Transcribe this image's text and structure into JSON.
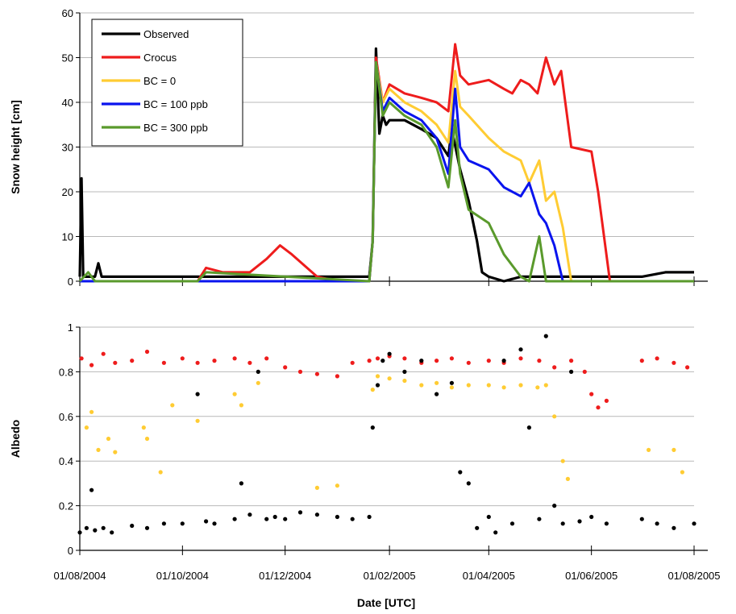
{
  "chart_data": [
    {
      "type": "line",
      "title": "",
      "xlabel": "",
      "ylabel": "Snow height [cm]",
      "ylim": [
        0,
        60
      ],
      "yticks": [
        0,
        10,
        20,
        30,
        40,
        50,
        60
      ],
      "xlim": [
        "2004-08-01",
        "2005-08-01"
      ],
      "xticks": [
        "01/08/2004",
        "01/10/2004",
        "01/12/2004",
        "01/02/2005",
        "01/04/2005",
        "01/06/2005",
        "01/08/2005"
      ],
      "grid": "horizontal",
      "legend": "top-left",
      "series": [
        {
          "name": "Observed",
          "color": "#000000",
          "x": [
            "2004-08-01",
            "2004-08-02",
            "2004-08-03",
            "2004-08-04",
            "2004-08-10",
            "2004-08-12",
            "2004-08-14",
            "2004-08-20",
            "2004-09-01",
            "2004-10-01",
            "2004-11-01",
            "2004-12-01",
            "2005-01-01",
            "2005-01-20",
            "2005-01-22",
            "2005-01-24",
            "2005-01-26",
            "2005-01-28",
            "2005-01-30",
            "2005-02-01",
            "2005-02-10",
            "2005-02-20",
            "2005-03-01",
            "2005-03-08",
            "2005-03-10",
            "2005-03-15",
            "2005-03-20",
            "2005-03-25",
            "2005-03-28",
            "2005-04-01",
            "2005-04-10",
            "2005-04-20",
            "2005-05-01",
            "2005-06-01",
            "2005-07-01",
            "2005-07-15",
            "2005-08-01"
          ],
          "y": [
            1,
            23,
            1,
            1,
            1,
            4,
            1,
            1,
            1,
            1,
            1,
            1,
            1,
            1,
            9,
            52,
            33,
            37,
            35,
            36,
            36,
            34,
            32,
            28,
            34,
            25,
            18,
            9,
            2,
            1,
            0,
            1,
            1,
            1,
            1,
            2,
            2
          ]
        },
        {
          "name": "Crocus",
          "color": "#ee1c1c",
          "x": [
            "2004-08-01",
            "2004-10-10",
            "2004-10-15",
            "2004-10-25",
            "2004-11-10",
            "2004-11-20",
            "2004-11-28",
            "2004-12-05",
            "2004-12-20",
            "2005-01-01",
            "2005-01-20",
            "2005-01-22",
            "2005-01-24",
            "2005-01-28",
            "2005-02-01",
            "2005-02-10",
            "2005-02-20",
            "2005-03-01",
            "2005-03-08",
            "2005-03-12",
            "2005-03-15",
            "2005-03-20",
            "2005-04-01",
            "2005-04-10",
            "2005-04-15",
            "2005-04-20",
            "2005-04-25",
            "2005-04-30",
            "2005-05-05",
            "2005-05-10",
            "2005-05-14",
            "2005-05-20",
            "2005-06-01",
            "2005-06-05",
            "2005-06-12",
            "2005-08-01"
          ],
          "y": [
            0,
            0,
            3,
            2,
            2,
            5,
            8,
            6,
            1,
            0,
            0,
            9,
            50,
            40,
            44,
            42,
            41,
            40,
            38,
            53,
            46,
            44,
            45,
            43,
            42,
            45,
            44,
            42,
            50,
            44,
            47,
            30,
            29,
            20,
            0,
            0
          ]
        },
        {
          "name": "BC = 0",
          "color": "#ffcc33",
          "x": [
            "2004-08-01",
            "2005-01-20",
            "2005-01-22",
            "2005-01-24",
            "2005-01-28",
            "2005-02-01",
            "2005-02-10",
            "2005-02-20",
            "2005-03-01",
            "2005-03-08",
            "2005-03-12",
            "2005-03-15",
            "2005-03-20",
            "2005-04-01",
            "2005-04-10",
            "2005-04-20",
            "2005-04-25",
            "2005-05-01",
            "2005-05-05",
            "2005-05-10",
            "2005-05-15",
            "2005-05-20",
            "2005-08-01"
          ],
          "y": [
            0,
            0,
            9,
            49,
            40,
            43,
            40,
            38,
            35,
            31,
            47,
            39,
            37,
            32,
            29,
            27,
            22,
            27,
            18,
            20,
            12,
            0,
            0
          ]
        },
        {
          "name": "BC = 100 ppb",
          "color": "#0a14ee",
          "x": [
            "2004-08-01",
            "2005-01-20",
            "2005-01-22",
            "2005-01-24",
            "2005-01-28",
            "2005-02-01",
            "2005-02-10",
            "2005-02-20",
            "2005-03-01",
            "2005-03-08",
            "2005-03-12",
            "2005-03-15",
            "2005-03-20",
            "2005-04-01",
            "2005-04-10",
            "2005-04-20",
            "2005-04-25",
            "2005-05-01",
            "2005-05-05",
            "2005-05-10",
            "2005-05-15",
            "2005-08-01"
          ],
          "y": [
            0,
            0,
            9,
            49,
            38,
            41,
            38,
            36,
            32,
            24,
            43,
            30,
            27,
            25,
            21,
            19,
            22,
            15,
            13,
            8,
            0,
            0
          ]
        },
        {
          "name": "BC = 300 ppb",
          "color": "#5a9a2c",
          "x": [
            "2004-08-01",
            "2004-08-06",
            "2004-08-10",
            "2004-10-10",
            "2004-10-15",
            "2005-01-20",
            "2005-01-22",
            "2005-01-24",
            "2005-01-28",
            "2005-02-01",
            "2005-02-10",
            "2005-02-20",
            "2005-03-01",
            "2005-03-08",
            "2005-03-12",
            "2005-03-15",
            "2005-03-20",
            "2005-04-01",
            "2005-04-10",
            "2005-04-20",
            "2005-04-25",
            "2005-05-01",
            "2005-05-05",
            "2005-08-01"
          ],
          "y": [
            0,
            2,
            0,
            0,
            2,
            0,
            9,
            49,
            37,
            40,
            37,
            35,
            30,
            21,
            36,
            24,
            16,
            13,
            6,
            1,
            0,
            10,
            0,
            0
          ]
        }
      ]
    },
    {
      "type": "scatter",
      "title": "",
      "xlabel": "Date [UTC]",
      "ylabel": "Albedo",
      "ylim": [
        0,
        1
      ],
      "yticks": [
        "0",
        "0.2",
        "0.4",
        "0.6",
        "0.8",
        "1"
      ],
      "xlim": [
        "2004-08-01",
        "2005-08-01"
      ],
      "xticks": [
        "01/08/2004",
        "01/10/2004",
        "01/12/2004",
        "01/02/2005",
        "01/04/2005",
        "01/06/2005",
        "01/08/2005"
      ],
      "grid": "horizontal",
      "series": [
        {
          "color": "#ee1c1c",
          "x": [
            "2004-08-02",
            "2004-08-08",
            "2004-08-15",
            "2004-08-22",
            "2004-09-01",
            "2004-09-10",
            "2004-09-20",
            "2004-10-01",
            "2004-10-10",
            "2004-10-20",
            "2004-11-01",
            "2004-11-10",
            "2004-11-20",
            "2004-12-01",
            "2004-12-10",
            "2004-12-20",
            "2005-01-01",
            "2005-01-10",
            "2005-01-20",
            "2005-01-25",
            "2005-02-01",
            "2005-02-10",
            "2005-02-20",
            "2005-03-01",
            "2005-03-10",
            "2005-03-20",
            "2005-04-01",
            "2005-04-10",
            "2005-04-20",
            "2005-05-01",
            "2005-05-10",
            "2005-05-20",
            "2005-05-28",
            "2005-06-01",
            "2005-06-05",
            "2005-06-10",
            "2005-07-01",
            "2005-07-10",
            "2005-07-20",
            "2005-07-28"
          ],
          "y": [
            0.86,
            0.83,
            0.88,
            0.84,
            0.85,
            0.89,
            0.84,
            0.86,
            0.84,
            0.85,
            0.86,
            0.84,
            0.86,
            0.82,
            0.8,
            0.79,
            0.78,
            0.84,
            0.85,
            0.86,
            0.87,
            0.86,
            0.84,
            0.85,
            0.86,
            0.84,
            0.85,
            0.84,
            0.86,
            0.85,
            0.82,
            0.85,
            0.8,
            0.7,
            0.64,
            0.67,
            0.85,
            0.86,
            0.84,
            0.82
          ]
        },
        {
          "color": "#ffcc33",
          "x": [
            "2004-08-05",
            "2004-08-08",
            "2004-08-12",
            "2004-08-18",
            "2004-08-22",
            "2004-09-08",
            "2004-09-10",
            "2004-09-18",
            "2004-09-25",
            "2004-10-10",
            "2004-11-01",
            "2004-11-05",
            "2004-11-15",
            "2004-12-20",
            "2005-01-01",
            "2005-01-22",
            "2005-01-25",
            "2005-02-01",
            "2005-02-10",
            "2005-02-20",
            "2005-03-01",
            "2005-03-10",
            "2005-03-20",
            "2005-04-01",
            "2005-04-10",
            "2005-04-20",
            "2005-04-30",
            "2005-05-05",
            "2005-05-10",
            "2005-05-15",
            "2005-05-18",
            "2005-07-05",
            "2005-07-20",
            "2005-07-25"
          ],
          "y": [
            0.55,
            0.62,
            0.45,
            0.5,
            0.44,
            0.55,
            0.5,
            0.35,
            0.65,
            0.58,
            0.7,
            0.65,
            0.75,
            0.28,
            0.29,
            0.72,
            0.78,
            0.77,
            0.76,
            0.74,
            0.75,
            0.73,
            0.74,
            0.74,
            0.73,
            0.74,
            0.73,
            0.74,
            0.6,
            0.4,
            0.32,
            0.45,
            0.45,
            0.35
          ]
        },
        {
          "name": "Observed",
          "color": "#000000",
          "x": [
            "2004-08-01",
            "2004-08-05",
            "2004-08-08",
            "2004-08-10",
            "2004-08-15",
            "2004-08-20",
            "2004-09-01",
            "2004-09-10",
            "2004-09-20",
            "2004-10-01",
            "2004-10-10",
            "2004-10-15",
            "2004-10-20",
            "2004-11-01",
            "2004-11-05",
            "2004-11-10",
            "2004-11-15",
            "2004-11-20",
            "2004-11-25",
            "2004-12-01",
            "2004-12-10",
            "2004-12-20",
            "2005-01-01",
            "2005-01-10",
            "2005-01-20",
            "2005-01-22",
            "2005-01-25",
            "2005-01-28",
            "2005-02-01",
            "2005-02-10",
            "2005-02-20",
            "2005-03-01",
            "2005-03-10",
            "2005-03-15",
            "2005-03-20",
            "2005-03-25",
            "2005-04-01",
            "2005-04-05",
            "2005-04-10",
            "2005-04-15",
            "2005-04-20",
            "2005-04-25",
            "2005-05-01",
            "2005-05-05",
            "2005-05-10",
            "2005-05-15",
            "2005-05-20",
            "2005-05-25",
            "2005-06-01",
            "2005-06-10",
            "2005-07-01",
            "2005-07-10",
            "2005-07-20",
            "2005-08-01"
          ],
          "y": [
            0.08,
            0.1,
            0.27,
            0.09,
            0.1,
            0.08,
            0.11,
            0.1,
            0.12,
            0.12,
            0.7,
            0.13,
            0.12,
            0.14,
            0.3,
            0.16,
            0.8,
            0.14,
            0.15,
            0.14,
            0.17,
            0.16,
            0.15,
            0.14,
            0.15,
            0.55,
            0.74,
            0.85,
            0.88,
            0.8,
            0.85,
            0.7,
            0.75,
            0.35,
            0.3,
            0.1,
            0.15,
            0.08,
            0.85,
            0.12,
            0.9,
            0.55,
            0.14,
            0.96,
            0.2,
            0.12,
            0.8,
            0.13,
            0.15,
            0.12,
            0.14,
            0.12,
            0.1,
            0.12
          ]
        }
      ]
    }
  ]
}
